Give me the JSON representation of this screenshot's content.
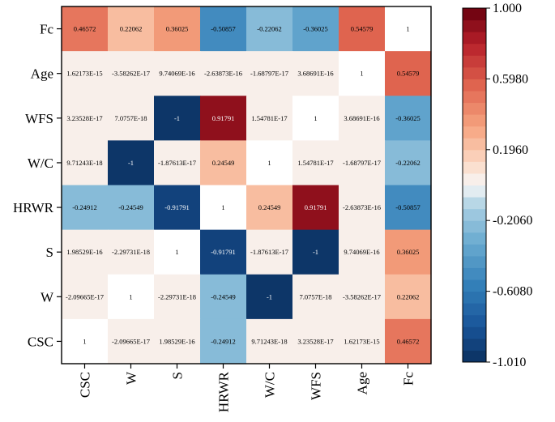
{
  "chart_data": {
    "type": "heatmap",
    "title": "",
    "xlabel": "",
    "ylabel": "",
    "x_labels": [
      "CSC",
      "W",
      "S",
      "HRWR",
      "W/C",
      "WFS",
      "Age",
      "Fc"
    ],
    "y_labels": [
      "Fc",
      "Age",
      "WFS",
      "W/C",
      "HRWR",
      "S",
      "W",
      "CSC"
    ],
    "values": [
      [
        0.46572,
        0.22062,
        0.36025,
        -0.50857,
        -0.22062,
        -0.36025,
        0.54579,
        1
      ],
      [
        1.62173e-15,
        -3.58262e-17,
        9.74069e-16,
        -2.63873e-16,
        -1.68797e-17,
        3.68691e-16,
        1,
        0.54579
      ],
      [
        3.23528e-17,
        7.0757e-18,
        -1,
        0.91791,
        1.54781e-17,
        1,
        3.68691e-16,
        -0.36025
      ],
      [
        9.71243e-18,
        -1,
        -1.87613e-17,
        0.24549,
        1,
        1.54781e-17,
        -1.68797e-17,
        -0.22062
      ],
      [
        -0.24912,
        -0.24549,
        -0.91791,
        1,
        0.24549,
        0.91791,
        -2.63873e-16,
        -0.50857
      ],
      [
        1.98529e-16,
        -2.29731e-18,
        1,
        -0.91791,
        -1.87613e-17,
        -1,
        9.74069e-16,
        0.36025
      ],
      [
        -2.09665e-17,
        1,
        -2.29731e-18,
        -0.24549,
        -1,
        7.0757e-18,
        -3.58262e-17,
        0.22062
      ],
      [
        1,
        -2.09665e-17,
        1.98529e-16,
        -0.24912,
        9.71243e-18,
        3.23528e-17,
        1.62173e-15,
        0.46572
      ]
    ],
    "labels": [
      [
        "0.46572",
        "0.22062",
        "0.36025",
        "-0.50857",
        "-0.22062",
        "-0.36025",
        "0.54579",
        "1"
      ],
      [
        "1.62173E-15",
        "-3.58262E-17",
        "9.74069E-16",
        "-2.63873E-16",
        "-1.68797E-17",
        "3.68691E-16",
        "1",
        "0.54579"
      ],
      [
        "3.23528E-17",
        "7.0757E-18",
        "-1",
        "0.91791",
        "1.54781E-17",
        "1",
        "3.68691E-16",
        "-0.36025"
      ],
      [
        "9.71243E-18",
        "-1",
        "-1.87613E-17",
        "0.24549",
        "1",
        "1.54781E-17",
        "-1.68797E-17",
        "-0.22062"
      ],
      [
        "-0.24912",
        "-0.24549",
        "-0.91791",
        "1",
        "0.24549",
        "0.91791",
        "-2.63873E-16",
        "-0.50857"
      ],
      [
        "1.98529E-16",
        "-2.29731E-18",
        "1",
        "-0.91791",
        "-1.87613E-17",
        "-1",
        "9.74069E-16",
        "0.36025"
      ],
      [
        "-2.09665E-17",
        "1",
        "-2.29731E-18",
        "-0.24549",
        "-1",
        "7.0757E-18",
        "-3.58262E-17",
        "0.22062"
      ],
      [
        "1",
        "-2.09665E-17",
        "1.98529E-16",
        "-0.24912",
        "9.71243E-18",
        "3.23528E-17",
        "1.62173E-15",
        "0.46572"
      ]
    ],
    "colorbar": {
      "min": -1.01,
      "max": 1.0,
      "ticks": [
        1.0,
        0.598,
        0.196,
        -0.206,
        -0.608,
        -1.01
      ],
      "tick_labels": [
        "1.000",
        "0.5980",
        "0.1960",
        "-0.2060",
        "-0.6080",
        "-1.010"
      ],
      "levels": 30,
      "colormap": "RdBu_r",
      "position": "right"
    },
    "colors": {
      "low": "#0b305e",
      "mid": "#f7f7f7",
      "high": "#67000d"
    }
  }
}
